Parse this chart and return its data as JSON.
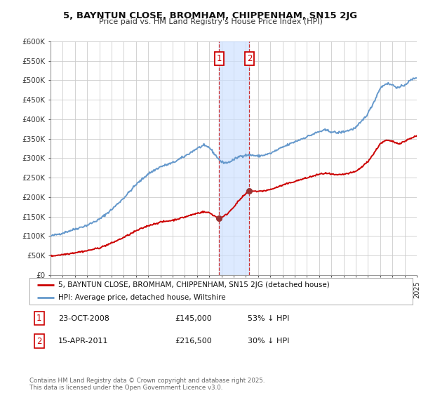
{
  "title": "5, BAYNTUN CLOSE, BROMHAM, CHIPPENHAM, SN15 2JG",
  "subtitle": "Price paid vs. HM Land Registry's House Price Index (HPI)",
  "ylabel_ticks": [
    "£0",
    "£50K",
    "£100K",
    "£150K",
    "£200K",
    "£250K",
    "£300K",
    "£350K",
    "£400K",
    "£450K",
    "£500K",
    "£550K",
    "£600K"
  ],
  "ytick_values": [
    0,
    50000,
    100000,
    150000,
    200000,
    250000,
    300000,
    350000,
    400000,
    450000,
    500000,
    550000,
    600000
  ],
  "x_start_year": 1995,
  "x_end_year": 2025,
  "legend_property": "5, BAYNTUN CLOSE, BROMHAM, CHIPPENHAM, SN15 2JG (detached house)",
  "legend_hpi": "HPI: Average price, detached house, Wiltshire",
  "transaction1_date": "23-OCT-2008",
  "transaction1_price": 145000,
  "transaction1_pct": "53% ↓ HPI",
  "transaction2_date": "15-APR-2011",
  "transaction2_price": 216500,
  "transaction2_pct": "30% ↓ HPI",
  "transaction1_x": 2008.81,
  "transaction2_x": 2011.29,
  "line_color_property": "#cc0000",
  "line_color_hpi": "#6699cc",
  "marker_color": "#993333",
  "shading_color": "#cce0ff",
  "copyright_text": "Contains HM Land Registry data © Crown copyright and database right 2025.\nThis data is licensed under the Open Government Licence v3.0.",
  "background_color": "#ffffff",
  "grid_color": "#cccccc"
}
